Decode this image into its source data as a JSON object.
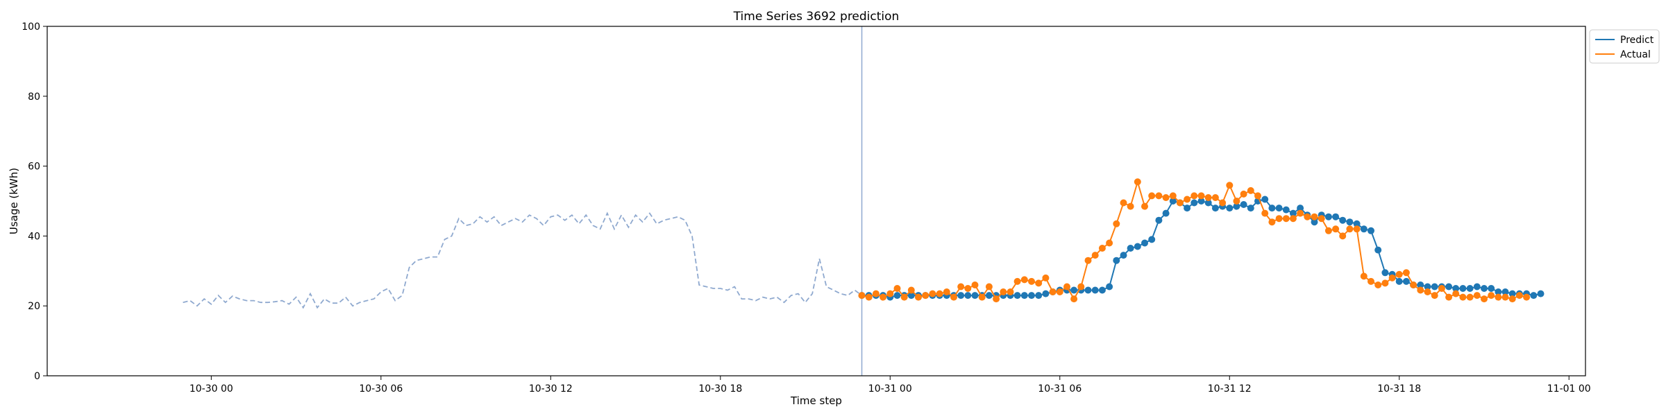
{
  "chart_data": {
    "type": "line",
    "title": "Time Series 3692 prediction",
    "xlabel": "Time step",
    "ylabel": "Usage (kWh)",
    "ylim": [
      0,
      100
    ],
    "yticks": [
      0,
      20,
      40,
      60,
      80,
      100
    ],
    "xlim": [
      "2017-10-29 18:12",
      "2017-11-01 00:35"
    ],
    "xticks": [
      {
        "t": "2017-10-30 00:00",
        "label": "10-30 00"
      },
      {
        "t": "2017-10-30 06:00",
        "label": "10-30 06"
      },
      {
        "t": "2017-10-30 12:00",
        "label": "10-30 12"
      },
      {
        "t": "2017-10-30 18:00",
        "label": "10-30 18"
      },
      {
        "t": "2017-10-31 00:00",
        "label": "10-31 00"
      },
      {
        "t": "2017-10-31 06:00",
        "label": "10-31 06"
      },
      {
        "t": "2017-10-31 12:00",
        "label": "10-31 12"
      },
      {
        "t": "2017-10-31 18:00",
        "label": "10-31 18"
      },
      {
        "t": "2017-11-01 00:00",
        "label": "11-01 00"
      }
    ],
    "grid": false,
    "legend_position": "outside-top-right",
    "vline": "2017-10-30 23:00",
    "history": {
      "start": "2017-10-29 23:00",
      "step_minutes": 15,
      "color": "#8fa9cf",
      "values": [
        21,
        21.5,
        20,
        22,
        20.5,
        23,
        21,
        22.8,
        22,
        21.5,
        21.5,
        21,
        21,
        21.2,
        21.5,
        20.5,
        22.5,
        19.5,
        23.5,
        19.5,
        22,
        20.8,
        20.8,
        22.5,
        20,
        21,
        21.5,
        22,
        24,
        25,
        21.5,
        23,
        31,
        33,
        33.5,
        34,
        34,
        39,
        40,
        45,
        43,
        43.5,
        45.5,
        44,
        45.5,
        43,
        44,
        45,
        44,
        46,
        45,
        43,
        45.5,
        46,
        44.5,
        46,
        43.5,
        46,
        43,
        42,
        46.5,
        42,
        46,
        42.5,
        46,
        44,
        46.5,
        43.5,
        44.5,
        45,
        45.5,
        44.5,
        40,
        26,
        25.5,
        25,
        25,
        24.5,
        25.5,
        22,
        22,
        21.5,
        22.5,
        22,
        22.5,
        21,
        23,
        23.5,
        21,
        23.5,
        33.5,
        25.5,
        24.5,
        23.5,
        23,
        24.5,
        23
      ]
    },
    "series": [
      {
        "name": "Predict",
        "color": "#1f77b4",
        "start": "2017-10-30 23:00",
        "step_minutes": 15,
        "values": [
          23,
          23,
          23,
          23,
          22.5,
          23,
          23,
          23,
          23,
          23,
          23,
          23,
          23,
          23,
          23,
          23,
          23,
          23,
          23,
          23,
          23,
          23,
          23,
          23,
          23,
          23,
          23.5,
          24,
          24.5,
          24.5,
          24.5,
          24.5,
          24.5,
          24.5,
          24.5,
          25.5,
          33,
          34.5,
          36.5,
          37,
          38,
          39,
          44.5,
          46.5,
          50,
          49.5,
          48,
          49.5,
          50,
          49.5,
          48,
          48.5,
          48,
          48.5,
          49,
          48,
          50,
          50.5,
          48,
          48,
          47.5,
          46.5,
          48,
          46,
          44,
          46,
          45.5,
          45.5,
          44.5,
          44,
          43.5,
          42,
          41.5,
          36,
          29.5,
          29,
          27,
          27,
          26,
          26,
          25.5,
          25.5,
          25.5,
          25.5,
          25,
          25,
          25,
          25.5,
          25,
          25,
          24,
          24,
          23.5,
          23.5,
          23.5,
          23,
          23.5
        ]
      },
      {
        "name": "Actual",
        "color": "#ff7f0e",
        "start": "2017-10-30 23:00",
        "step_minutes": 15,
        "values": [
          23,
          22.5,
          23.5,
          22.5,
          23.5,
          25,
          22.5,
          24.5,
          22.5,
          23,
          23.5,
          23.5,
          24,
          22.5,
          25.5,
          25,
          26,
          22.5,
          25.5,
          22,
          24,
          24,
          27,
          27.5,
          27,
          26.5,
          28,
          24,
          24,
          25.5,
          22,
          25.5,
          33,
          34.5,
          36.5,
          38,
          43.5,
          49.5,
          48.5,
          55.5,
          48.5,
          51.5,
          51.5,
          51,
          51.5,
          49.5,
          50.5,
          51.5,
          51.5,
          51,
          51,
          49.5,
          54.5,
          50,
          52,
          53,
          51.5,
          46.5,
          44,
          45,
          45,
          45,
          46.5,
          45.5,
          45.5,
          45,
          41.5,
          42,
          40,
          42,
          42,
          28.5,
          27,
          26,
          26.5,
          28,
          29,
          29.5,
          26,
          24.5,
          24,
          23,
          25,
          22.5,
          23.5,
          22.5,
          22.5,
          23,
          22,
          23,
          22.5,
          22.5,
          22,
          23,
          22.5
        ]
      }
    ]
  }
}
